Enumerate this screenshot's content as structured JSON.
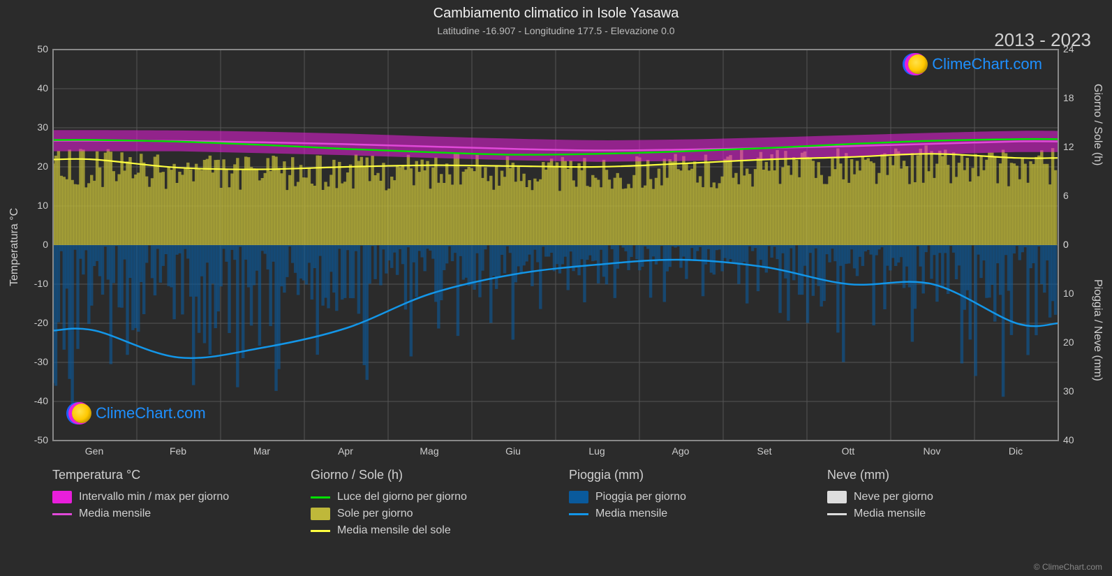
{
  "title": "Cambiamento climatico in Isole Yasawa",
  "subtitle": "Latitudine -16.907 - Longitudine 177.5 - Elevazione 0.0",
  "years": "2013 - 2023",
  "copyright": "© ClimeChart.com",
  "logo_text": "ClimeChart.com",
  "axis": {
    "left_label": "Temperatura °C",
    "left_ticks": [
      -50,
      -40,
      -30,
      -20,
      -10,
      0,
      10,
      20,
      30,
      40,
      50
    ],
    "left_min": -50,
    "left_max": 50,
    "right_top_label": "Giorno / Sole (h)",
    "right_top_ticks": [
      0,
      6,
      12,
      18,
      24
    ],
    "right_top_min": 0,
    "right_top_max": 24,
    "right_bottom_label": "Pioggia / Neve (mm)",
    "right_bottom_ticks": [
      0,
      10,
      20,
      30,
      40
    ],
    "right_bottom_min": 0,
    "right_bottom_max": 40,
    "months": [
      "Gen",
      "Feb",
      "Mar",
      "Apr",
      "Mag",
      "Giu",
      "Lug",
      "Ago",
      "Set",
      "Ott",
      "Nov",
      "Dic"
    ]
  },
  "colors": {
    "background": "#2b2b2b",
    "grid": "#555555",
    "border": "#888888",
    "temp_range_fill": "#e81edb",
    "temp_mean_line": "#e049d8",
    "daylight_line": "#00e000",
    "sun_fill": "#bfb83a",
    "sun_mean_line": "#ffff40",
    "rain_fill": "#0a5a9c",
    "rain_mean_line": "#1396e8",
    "snow_fill": "#dddddd",
    "snow_mean_line": "#dddddd",
    "text": "#d0d0d0"
  },
  "series": {
    "temp_mean_monthly_c": [
      26.7,
      26.6,
      26.3,
      25.8,
      25.2,
      24.6,
      24.2,
      24.4,
      24.8,
      25.3,
      25.9,
      26.5
    ],
    "temp_range_min_c": [
      24.0,
      24.0,
      23.5,
      23.0,
      22.3,
      21.7,
      21.3,
      21.5,
      21.8,
      22.4,
      23.2,
      23.8
    ],
    "temp_range_max_c": [
      29.4,
      29.3,
      29.0,
      28.5,
      27.8,
      27.2,
      26.8,
      27.0,
      27.5,
      28.1,
      28.7,
      29.2
    ],
    "daylight_h": [
      12.9,
      12.7,
      12.3,
      11.8,
      11.4,
      11.1,
      11.2,
      11.5,
      11.9,
      12.4,
      12.8,
      13.0
    ],
    "sun_mean_monthly_h": [
      10.5,
      9.5,
      9.3,
      9.6,
      9.8,
      9.7,
      9.6,
      10.0,
      10.5,
      10.8,
      11.2,
      10.7
    ],
    "sun_fill_top_h": [
      11.8,
      11.3,
      11.0,
      11.2,
      11.4,
      11.2,
      11.0,
      11.4,
      11.8,
      12.0,
      12.3,
      12.0
    ],
    "rain_mean_monthly_mm": [
      17.5,
      23.0,
      21.0,
      17.0,
      10.0,
      6.0,
      4.0,
      3.0,
      4.5,
      8.0,
      8.0,
      16.0
    ],
    "rain_fill_max_mm": [
      39,
      39,
      39,
      36,
      28,
      20,
      16,
      14,
      18,
      25,
      27,
      38
    ]
  },
  "legend": {
    "temp_header": "Temperatura °C",
    "temp_range": "Intervallo min / max per giorno",
    "temp_mean": "Media mensile",
    "daysun_header": "Giorno / Sole (h)",
    "daylight": "Luce del giorno per giorno",
    "sun": "Sole per giorno",
    "sun_mean": "Media mensile del sole",
    "rain_header": "Pioggia (mm)",
    "rain": "Pioggia per giorno",
    "rain_mean": "Media mensile",
    "snow_header": "Neve (mm)",
    "snow": "Neve per giorno",
    "snow_mean": "Media mensile"
  }
}
